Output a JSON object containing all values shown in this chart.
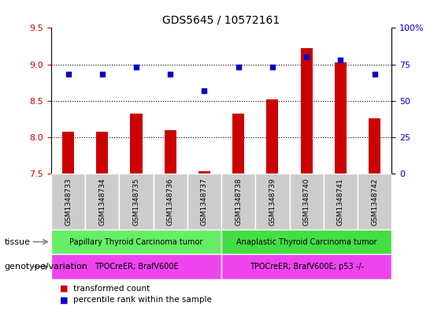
{
  "title": "GDS5645 / 10572161",
  "samples": [
    "GSM1348733",
    "GSM1348734",
    "GSM1348735",
    "GSM1348736",
    "GSM1348737",
    "GSM1348738",
    "GSM1348739",
    "GSM1348740",
    "GSM1348741",
    "GSM1348742"
  ],
  "transformed_count": [
    8.07,
    8.08,
    8.32,
    8.1,
    7.53,
    8.32,
    8.52,
    9.22,
    9.03,
    8.26
  ],
  "percentile_rank": [
    68,
    68,
    73,
    68,
    57,
    73,
    73,
    80,
    78,
    68
  ],
  "ylim": [
    7.5,
    9.5
  ],
  "y2lim": [
    0,
    100
  ],
  "yticks": [
    7.5,
    8.0,
    8.5,
    9.0,
    9.5
  ],
  "y2ticks": [
    0,
    25,
    50,
    75,
    100
  ],
  "bar_color": "#CC0000",
  "dot_color": "#0000CC",
  "bar_bottom": 7.5,
  "tissue_groups": [
    {
      "label": "Papillary Thyroid Carcinoma tumor",
      "start": 0,
      "end": 5,
      "color": "#66EE66"
    },
    {
      "label": "Anaplastic Thyroid Carcinoma tumor",
      "start": 5,
      "end": 10,
      "color": "#44DD44"
    }
  ],
  "genotype_groups": [
    {
      "label": "TPOCreER; BrafV600E",
      "start": 0,
      "end": 5,
      "color": "#EE44EE"
    },
    {
      "label": "TPOCreER; BrafV600E; p53 -/-",
      "start": 5,
      "end": 10,
      "color": "#EE44EE"
    }
  ],
  "legend_items": [
    {
      "label": "transformed count",
      "color": "#CC0000"
    },
    {
      "label": "percentile rank within the sample",
      "color": "#0000CC"
    }
  ],
  "left_label_tissue": "tissue",
  "left_label_genotype": "genotype/variation",
  "background_color": "#FFFFFF",
  "tick_label_color_left": "#CC0000",
  "tick_label_color_right": "#0000CC",
  "gridlines": [
    8.0,
    8.5,
    9.0
  ],
  "bar_width": 0.35
}
